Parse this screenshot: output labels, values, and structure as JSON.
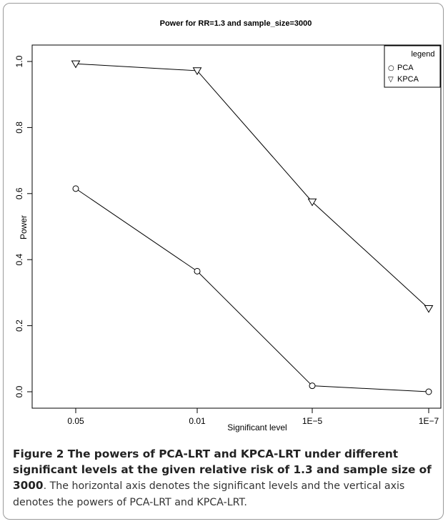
{
  "chart_data": {
    "type": "line",
    "title": "Power for RR=1.3 and sample_size=3000",
    "xlabel": "Significant level",
    "ylabel": "Power",
    "categories": [
      "0.05",
      "0.01",
      "1E−5",
      "1E−7"
    ],
    "ylim": [
      0.0,
      1.0
    ],
    "yticks": [
      "0.0",
      "0.2",
      "0.4",
      "0.6",
      "0.8",
      "1.0"
    ],
    "grid": false,
    "legend": {
      "title": "legend",
      "placement": "top-right",
      "entries": [
        {
          "symbol": "○",
          "label": "PCA"
        },
        {
          "symbol": "▽",
          "label": "KPCA"
        }
      ]
    },
    "series": [
      {
        "name": "PCA",
        "marker": "circle",
        "values": [
          0.615,
          0.365,
          0.018,
          0.0
        ]
      },
      {
        "name": "KPCA",
        "marker": "triangle-down",
        "values": [
          0.993,
          0.972,
          0.575,
          0.252
        ]
      }
    ]
  },
  "caption": {
    "title": "Figure 2 The powers of PCA-LRT and KPCA-LRT under different significant levels at the given relative risk of 1.3 and sample size of 3000",
    "body": ". The horizontal axis denotes the significant levels and the vertical axis denotes the powers of PCA-LRT and KPCA-LRT."
  }
}
